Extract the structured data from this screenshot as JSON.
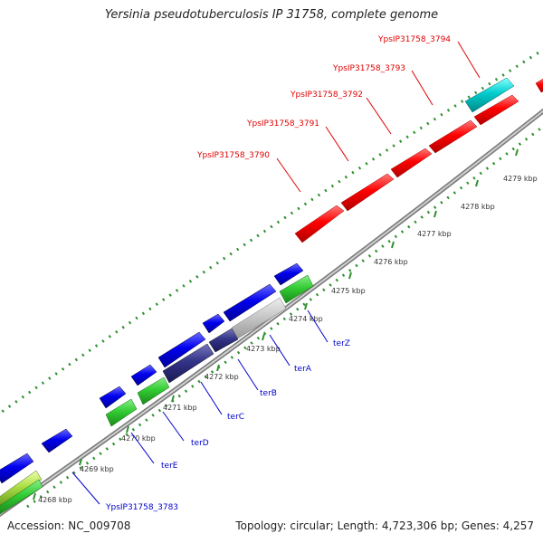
{
  "title": "Yersinia pseudotuberculosis IP 31758, complete genome",
  "footer": {
    "accession": "Accession: NC_009708",
    "summary": "Topology: circular; Length: 4,723,306 bp; Genes: 4,257"
  },
  "colors": {
    "red_genes": "#ff0000",
    "blue_genes": "#0000ee",
    "green_genes": "#33cc33",
    "cyan_gene": "#00cccc",
    "navy_genes": "#333388",
    "grey_gene": "#c8c8c8",
    "ruler_dots": "#339933",
    "red_label": "#e00000",
    "blue_label": "#0000cc"
  },
  "kbp_ticks": [
    "4268 kbp",
    "4269 kbp",
    "4270 kbp",
    "4271 kbp",
    "4272 kbp",
    "4273 kbp",
    "4274 kbp",
    "4275 kbp",
    "4276 kbp",
    "4277 kbp",
    "4278 kbp",
    "4279 kbp"
  ],
  "red_labels": [
    "YpsIP31758_3790",
    "YpsIP31758_3791",
    "YpsIP31758_3792",
    "YpsIP31758_3793",
    "YpsIP31758_3794"
  ],
  "blue_labels": [
    "YpsIP31758_3783",
    "terE",
    "terD",
    "terC",
    "terB",
    "terA",
    "terZ"
  ]
}
